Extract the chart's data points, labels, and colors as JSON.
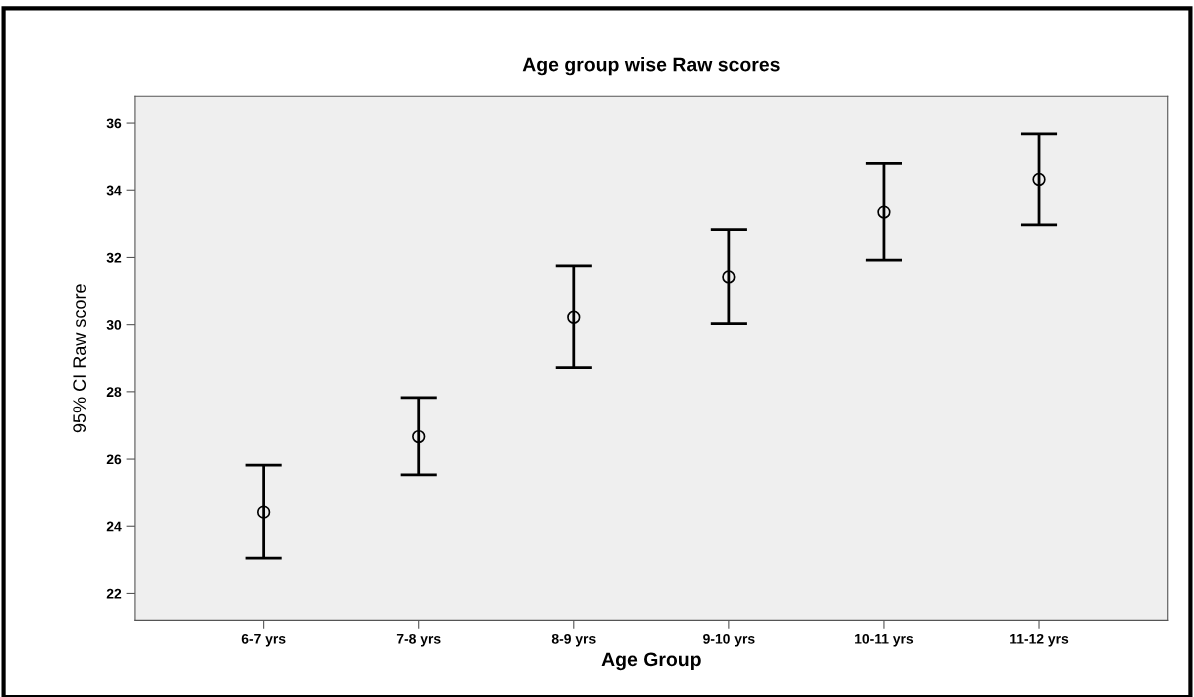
{
  "chart_data": {
    "type": "scatter",
    "title": "Age group wise Raw scores",
    "xlabel": "Age Group",
    "ylabel": "95% CI Raw score",
    "categories": [
      "6-7 yrs",
      "7-8 yrs",
      "8-9 yrs",
      "9-10 yrs",
      "10-11 yrs",
      "11-12 yrs"
    ],
    "series": [
      {
        "color": "#000000",
        "values": [
          24.42,
          26.67,
          30.22,
          31.42,
          33.35,
          34.32
        ],
        "errors": [
          [
            23.05,
            25.82
          ],
          [
            25.53,
            27.82
          ],
          [
            28.72,
            31.75
          ],
          [
            30.03,
            32.83
          ],
          [
            31.92,
            34.8
          ],
          [
            32.97,
            35.68
          ]
        ]
      }
    ],
    "ylim": [
      21.2,
      36.8
    ],
    "yticks": [
      22,
      24,
      26,
      28,
      30,
      32,
      34,
      36
    ],
    "marker": "circle",
    "grid": false,
    "legend": false
  }
}
